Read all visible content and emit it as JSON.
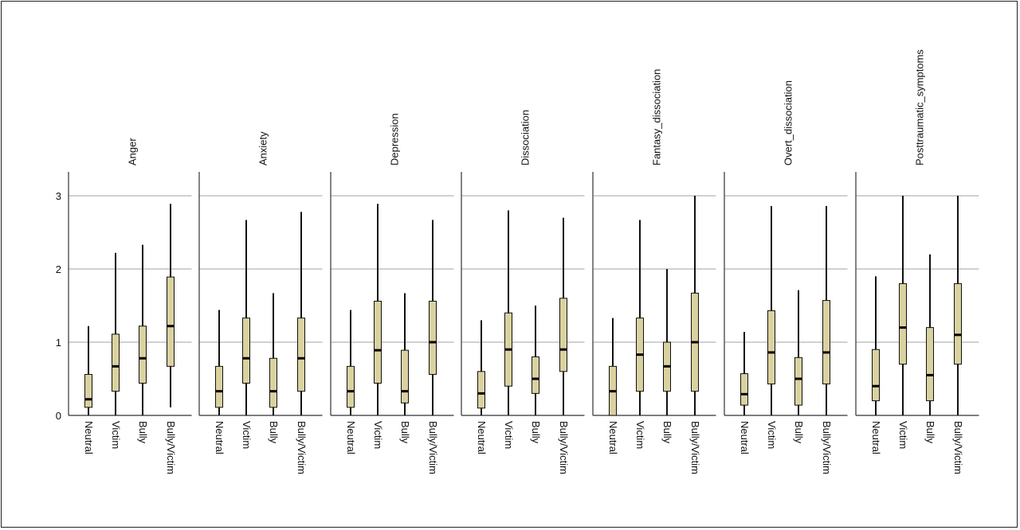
{
  "chart_data": {
    "type": "boxplot",
    "categories": [
      "Neutral",
      "Victim",
      "Bully",
      "Bully/Victim"
    ],
    "ylim": [
      0,
      3.2
    ],
    "yticks": [
      0,
      1,
      2,
      3
    ],
    "ytick_labels": [
      "0",
      "1",
      "2",
      "3"
    ],
    "grid": true,
    "box_color": "#d9d2a0",
    "panels": [
      {
        "title": "Anger",
        "boxes": [
          {
            "min": 0.0,
            "q1": 0.11,
            "median": 0.22,
            "q3": 0.56,
            "max": 1.22
          },
          {
            "min": 0.0,
            "q1": 0.33,
            "median": 0.67,
            "q3": 1.11,
            "max": 2.22
          },
          {
            "min": 0.0,
            "q1": 0.44,
            "median": 0.78,
            "q3": 1.22,
            "max": 2.33
          },
          {
            "min": 0.11,
            "q1": 0.67,
            "median": 1.22,
            "q3": 1.89,
            "max": 2.89
          }
        ]
      },
      {
        "title": "Anxiety",
        "boxes": [
          {
            "min": 0.0,
            "q1": 0.11,
            "median": 0.33,
            "q3": 0.67,
            "max": 1.44
          },
          {
            "min": 0.0,
            "q1": 0.44,
            "median": 0.78,
            "q3": 1.33,
            "max": 2.67
          },
          {
            "min": 0.0,
            "q1": 0.11,
            "median": 0.33,
            "q3": 0.78,
            "max": 1.67
          },
          {
            "min": 0.0,
            "q1": 0.33,
            "median": 0.78,
            "q3": 1.33,
            "max": 2.78
          }
        ]
      },
      {
        "title": "Depression",
        "boxes": [
          {
            "min": 0.0,
            "q1": 0.11,
            "median": 0.33,
            "q3": 0.67,
            "max": 1.44
          },
          {
            "min": 0.0,
            "q1": 0.44,
            "median": 0.89,
            "q3": 1.56,
            "max": 2.89
          },
          {
            "min": 0.0,
            "q1": 0.17,
            "median": 0.33,
            "q3": 0.89,
            "max": 1.67
          },
          {
            "min": 0.0,
            "q1": 0.56,
            "median": 1.0,
            "q3": 1.56,
            "max": 2.67
          }
        ]
      },
      {
        "title": "Dissociation",
        "boxes": [
          {
            "min": 0.0,
            "q1": 0.1,
            "median": 0.3,
            "q3": 0.6,
            "max": 1.3
          },
          {
            "min": 0.0,
            "q1": 0.4,
            "median": 0.9,
            "q3": 1.4,
            "max": 2.8
          },
          {
            "min": 0.0,
            "q1": 0.3,
            "median": 0.5,
            "q3": 0.8,
            "max": 1.5
          },
          {
            "min": 0.0,
            "q1": 0.6,
            "median": 0.9,
            "q3": 1.6,
            "max": 2.7
          }
        ]
      },
      {
        "title": "Fantasy_dissociation",
        "boxes": [
          {
            "min": 0.0,
            "q1": 0.0,
            "median": 0.33,
            "q3": 0.67,
            "max": 1.33
          },
          {
            "min": 0.0,
            "q1": 0.33,
            "median": 0.83,
            "q3": 1.33,
            "max": 2.67
          },
          {
            "min": 0.0,
            "q1": 0.33,
            "median": 0.67,
            "q3": 1.0,
            "max": 2.0
          },
          {
            "min": 0.0,
            "q1": 0.33,
            "median": 1.0,
            "q3": 1.67,
            "max": 3.0
          }
        ]
      },
      {
        "title": "Overt_dissociation",
        "boxes": [
          {
            "min": 0.0,
            "q1": 0.14,
            "median": 0.29,
            "q3": 0.57,
            "max": 1.14
          },
          {
            "min": 0.0,
            "q1": 0.43,
            "median": 0.86,
            "q3": 1.43,
            "max": 2.86
          },
          {
            "min": 0.0,
            "q1": 0.14,
            "median": 0.5,
            "q3": 0.79,
            "max": 1.71
          },
          {
            "min": 0.0,
            "q1": 0.43,
            "median": 0.86,
            "q3": 1.57,
            "max": 2.86
          }
        ]
      },
      {
        "title": "Posttraumatic_symptoms",
        "boxes": [
          {
            "min": 0.0,
            "q1": 0.2,
            "median": 0.4,
            "q3": 0.9,
            "max": 1.9
          },
          {
            "min": 0.0,
            "q1": 0.7,
            "median": 1.2,
            "q3": 1.8,
            "max": 3.0
          },
          {
            "min": 0.0,
            "q1": 0.2,
            "median": 0.55,
            "q3": 1.2,
            "max": 2.2
          },
          {
            "min": 0.0,
            "q1": 0.7,
            "median": 1.1,
            "q3": 1.8,
            "max": 3.0
          }
        ]
      }
    ]
  }
}
